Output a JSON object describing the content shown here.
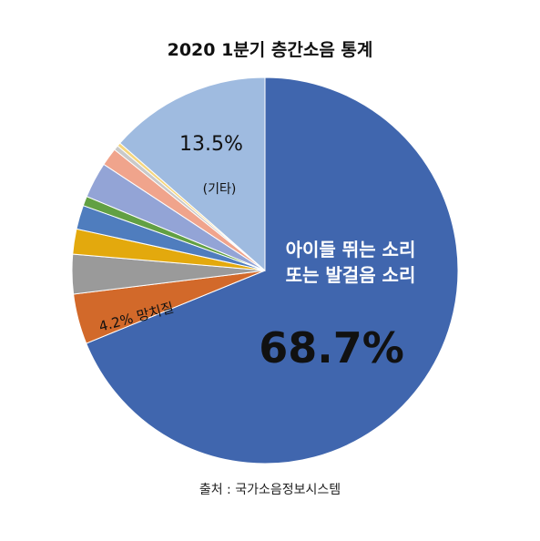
{
  "chart_data": {
    "type": "pie",
    "title": "2020 1분기 층간소음 통계",
    "source": "출처 : 국가소음정보시스템",
    "slices": [
      {
        "label": "아이들 뛰는 소리 또는 발걸음 소리",
        "value": 68.7,
        "display": "68.7%",
        "color": "#4066AE"
      },
      {
        "label": "망치질",
        "value": 4.2,
        "display": "4.2%",
        "color": "#D2692A"
      },
      {
        "label": "",
        "value": 3.3,
        "display": "",
        "color": "#9A9A9A"
      },
      {
        "label": "",
        "value": 2.1,
        "display": "",
        "color": "#E3A90D"
      },
      {
        "label": "",
        "value": 2.0,
        "display": "",
        "color": "#4F7DBE"
      },
      {
        "label": "",
        "value": 0.8,
        "display": "",
        "color": "#62A043"
      },
      {
        "label": "",
        "value": 3.0,
        "display": "",
        "color": "#93A4D6"
      },
      {
        "label": "",
        "value": 1.5,
        "display": "",
        "color": "#F0A48C"
      },
      {
        "label": "",
        "value": 0.4,
        "display": "",
        "color": "#C9C9C9"
      },
      {
        "label": "",
        "value": 0.3,
        "display": "",
        "color": "#F6D67C"
      },
      {
        "label": "기타",
        "value": 13.5,
        "display": "13.5%",
        "color": "#9FBBE0"
      }
    ],
    "labels": {
      "main_line1": "아이들 뛰는 소리",
      "main_line2": "또는 발걸음 소리",
      "main_pct": "68.7%",
      "hammer": "4.2% 망치질",
      "other_pct": "13.5%",
      "other_name": "(기타)"
    }
  }
}
